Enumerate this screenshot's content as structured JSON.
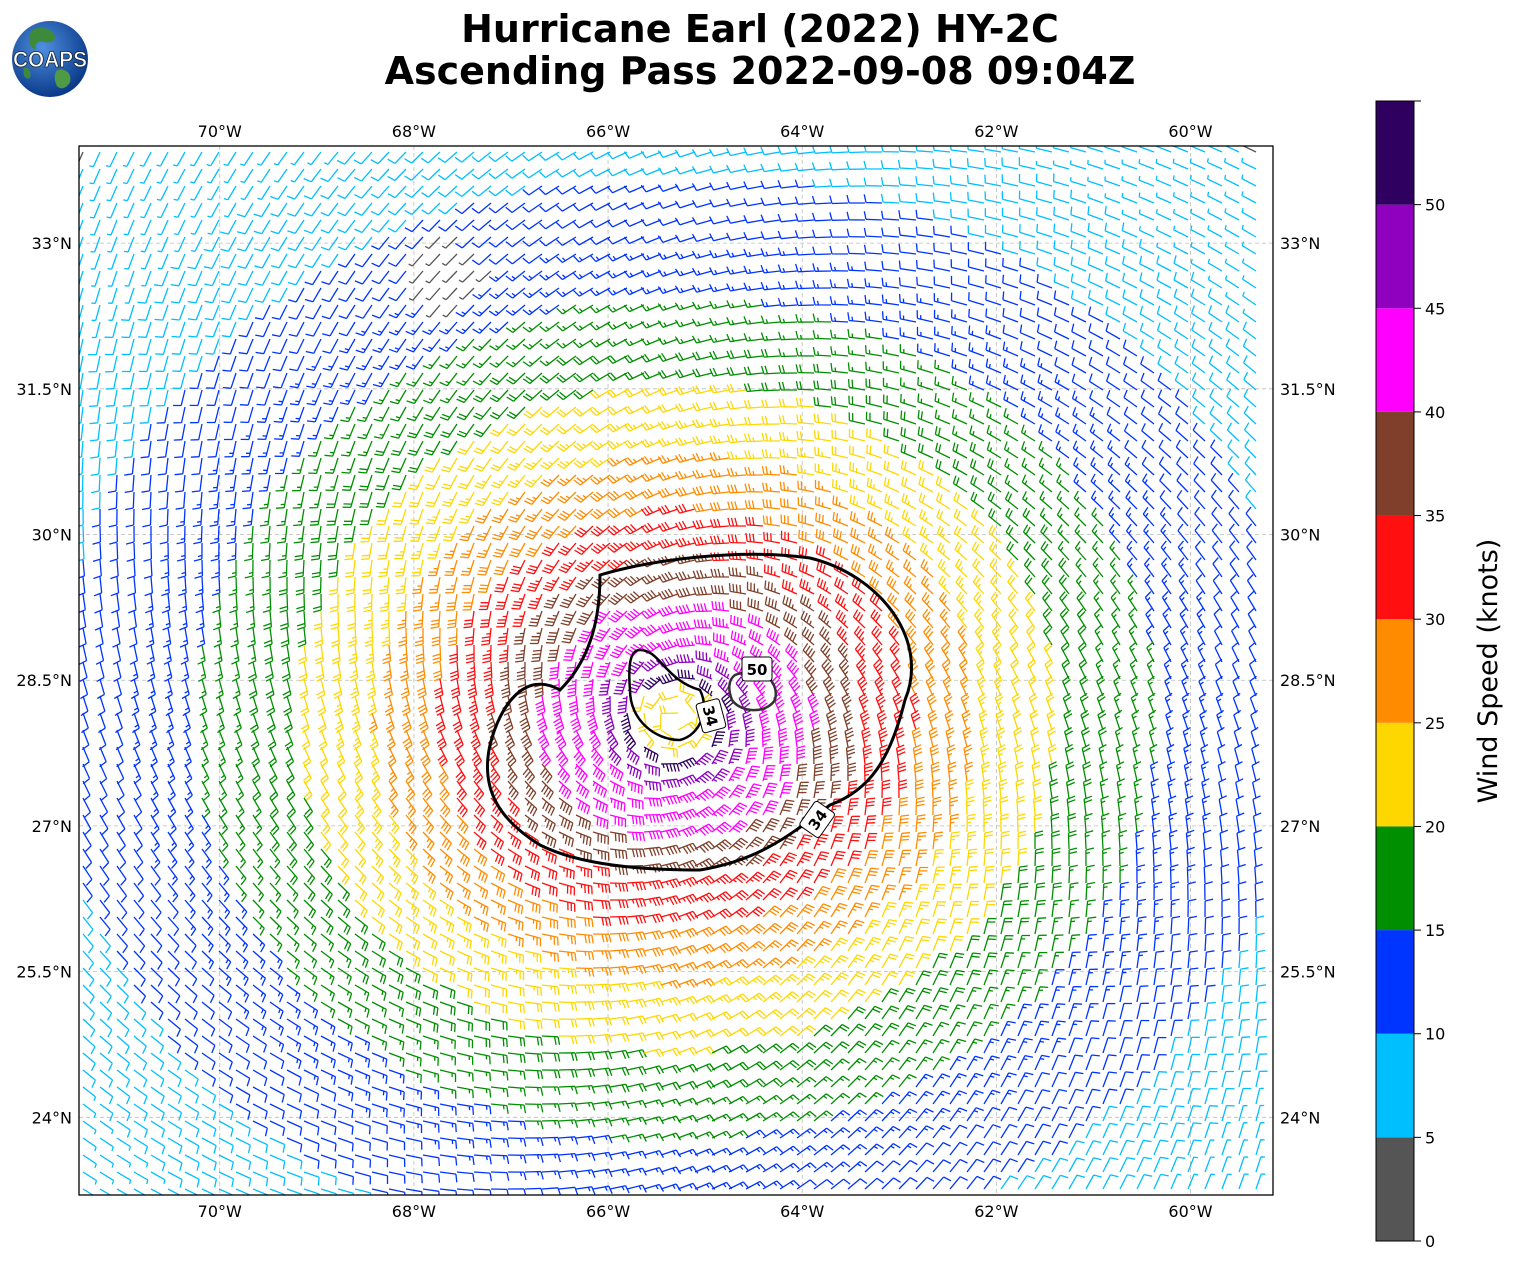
{
  "header": {
    "title_line1": "Hurricane Earl (2022) HY-2C",
    "title_line2": "Ascending Pass 2022-09-08 09:04Z"
  },
  "logo": {
    "text": "COAPS"
  },
  "map": {
    "lon_range": [
      -71.45,
      -59.15
    ],
    "lat_range": [
      23.2,
      34.0
    ],
    "lon_ticks": [
      {
        "value": -70,
        "label": "70°W"
      },
      {
        "value": -68,
        "label": "68°W"
      },
      {
        "value": -66,
        "label": "66°W"
      },
      {
        "value": -64,
        "label": "64°W"
      },
      {
        "value": -62,
        "label": "62°W"
      },
      {
        "value": -60,
        "label": "60°W"
      }
    ],
    "lat_ticks": [
      {
        "value": 33,
        "label": "33°N"
      },
      {
        "value": 31.5,
        "label": "31.5°N"
      },
      {
        "value": 30,
        "label": "30°N"
      },
      {
        "value": 28.5,
        "label": "28.5°N"
      },
      {
        "value": 27,
        "label": "27°N"
      },
      {
        "value": 25.5,
        "label": "25.5°N"
      },
      {
        "value": 24,
        "label": "24°N"
      }
    ],
    "gridlines": true,
    "storm_center": {
      "lon": -65.3,
      "lat": 28.1
    },
    "contours": [
      {
        "level": 34,
        "label": "34"
      },
      {
        "level": 50,
        "label": "50"
      }
    ]
  },
  "colorbar": {
    "label": "Wind Speed (knots)",
    "tick_labels": [
      "0",
      "5",
      "10",
      "15",
      "20",
      "25",
      "30",
      "35",
      "40",
      "45",
      "50"
    ],
    "bins": [
      {
        "min": 0,
        "max": 5,
        "color": "#555555"
      },
      {
        "min": 5,
        "max": 10,
        "color": "#00bfff"
      },
      {
        "min": 10,
        "max": 15,
        "color": "#0034ff"
      },
      {
        "min": 15,
        "max": 20,
        "color": "#008f00"
      },
      {
        "min": 20,
        "max": 25,
        "color": "#ffd700"
      },
      {
        "min": 25,
        "max": 30,
        "color": "#ff8c00"
      },
      {
        "min": 30,
        "max": 35,
        "color": "#ff0f0f"
      },
      {
        "min": 35,
        "max": 40,
        "color": "#7f3f2a"
      },
      {
        "min": 40,
        "max": 45,
        "color": "#ff00ff"
      },
      {
        "min": 45,
        "max": 50,
        "color": "#8f00bf"
      },
      {
        "min": 50,
        "max": 55,
        "color": "#2f005f"
      }
    ]
  }
}
